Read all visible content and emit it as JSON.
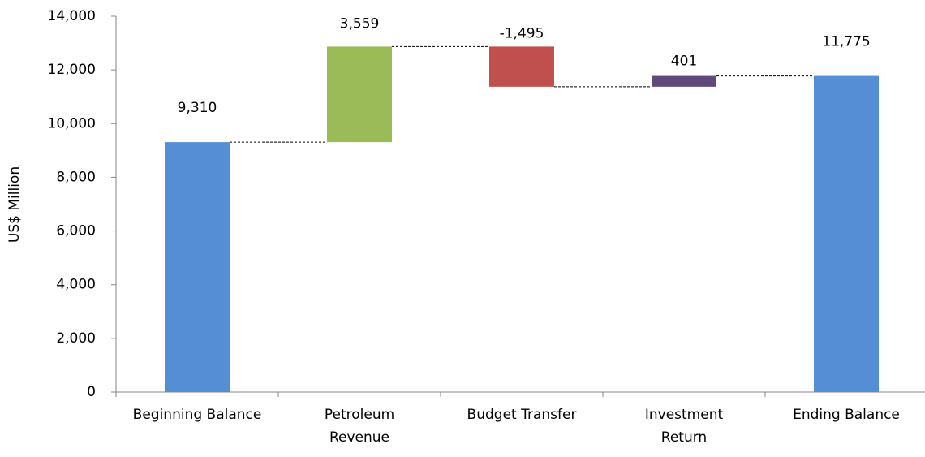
{
  "chart_data": {
    "type": "waterfall",
    "y_label": "US$  Million",
    "categories": [
      "Beginning Balance",
      "Petroleum Revenue",
      "Budget Transfer",
      "Investment Return",
      "Ending Balance"
    ],
    "values": [
      9310,
      3559,
      -1495,
      401,
      11775
    ],
    "value_labels": [
      "9,310",
      "3,559",
      "-1,495",
      "401",
      "11,775"
    ],
    "colors": [
      "#558ed5",
      "#9bbb59",
      "#c0504d",
      "#604a7b",
      "#558ed5"
    ],
    "ylim": [
      0,
      14000
    ],
    "yticks": [
      0,
      {
        "value": 2000,
        "label": "2,000"
      },
      {
        "value": 4000,
        "label": "4,000"
      },
      {
        "value": 6000,
        "label": "6,000"
      },
      {
        "value": 8000,
        "label": "8,000"
      },
      {
        "value": 10000,
        "label": "10,000"
      },
      {
        "value": 12000,
        "label": "12,000"
      },
      {
        "value": 14000,
        "label": "14,000"
      }
    ],
    "grid": false
  }
}
